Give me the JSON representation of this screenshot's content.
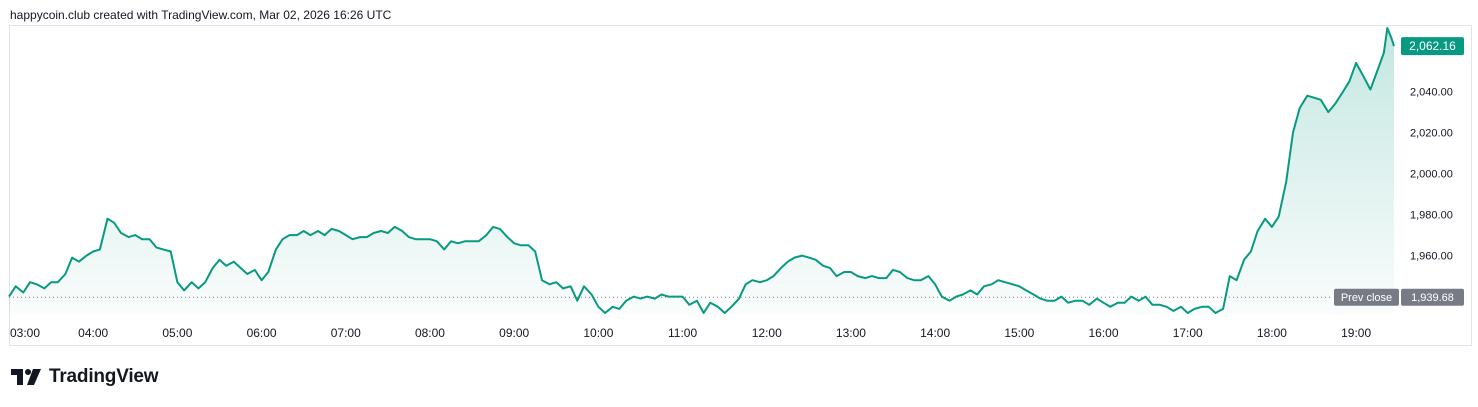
{
  "header": {
    "attribution": "happycoin.club created with TradingView.com, Mar 02, 2026 16:26 UTC"
  },
  "footer": {
    "brand": "TradingView"
  },
  "colors": {
    "line": "#089981",
    "price_badge": "#089981",
    "prev_close_badge": "#787b86",
    "grid": "#e0e3eb"
  },
  "chart_data": {
    "type": "area",
    "last_price_label": "2,062.16",
    "prev_close_label": "Prev close",
    "prev_close_value_label": "1,939.68",
    "last_price": 2062.16,
    "prev_close": 1939.68,
    "y_ticks": [
      {
        "value": 1960,
        "label": "1,960.00"
      },
      {
        "value": 1980,
        "label": "1,980.00"
      },
      {
        "value": 2000,
        "label": "2,000.00"
      },
      {
        "value": 2020,
        "label": "2,020.00"
      },
      {
        "value": 2040,
        "label": "2,040.00"
      }
    ],
    "x_ticks": [
      {
        "hour": 3,
        "label": "03:00"
      },
      {
        "hour": 4,
        "label": "04:00"
      },
      {
        "hour": 5,
        "label": "05:00"
      },
      {
        "hour": 6,
        "label": "06:00"
      },
      {
        "hour": 7,
        "label": "07:00"
      },
      {
        "hour": 8,
        "label": "08:00"
      },
      {
        "hour": 9,
        "label": "09:00"
      },
      {
        "hour": 10,
        "label": "10:00"
      },
      {
        "hour": 11,
        "label": "11:00"
      },
      {
        "hour": 12,
        "label": "12:00"
      },
      {
        "hour": 13,
        "label": "13:00"
      },
      {
        "hour": 14,
        "label": "14:00"
      },
      {
        "hour": 15,
        "label": "15:00"
      },
      {
        "hour": 16,
        "label": "16:00"
      },
      {
        "hour": 17,
        "label": "17:00"
      },
      {
        "hour": 18,
        "label": "18:00"
      },
      {
        "hour": 19,
        "label": "19:00"
      }
    ],
    "ylim": [
      1931,
      2072
    ],
    "xlim": [
      3.0,
      19.45
    ],
    "series": [
      {
        "points": [
          [
            3.0,
            1940
          ],
          [
            3.08,
            1945
          ],
          [
            3.17,
            1942
          ],
          [
            3.25,
            1947
          ],
          [
            3.33,
            1946
          ],
          [
            3.42,
            1944
          ],
          [
            3.5,
            1947
          ],
          [
            3.58,
            1947
          ],
          [
            3.67,
            1951
          ],
          [
            3.75,
            1959
          ],
          [
            3.83,
            1957
          ],
          [
            3.92,
            1960
          ],
          [
            4.0,
            1962
          ],
          [
            4.08,
            1963
          ],
          [
            4.17,
            1978
          ],
          [
            4.25,
            1976
          ],
          [
            4.33,
            1971
          ],
          [
            4.42,
            1969
          ],
          [
            4.5,
            1970
          ],
          [
            4.58,
            1968
          ],
          [
            4.67,
            1968
          ],
          [
            4.75,
            1964
          ],
          [
            4.83,
            1963
          ],
          [
            4.92,
            1962
          ],
          [
            5.0,
            1947
          ],
          [
            5.08,
            1943
          ],
          [
            5.17,
            1947
          ],
          [
            5.25,
            1944
          ],
          [
            5.33,
            1947
          ],
          [
            5.42,
            1954
          ],
          [
            5.5,
            1958
          ],
          [
            5.58,
            1955
          ],
          [
            5.67,
            1957
          ],
          [
            5.75,
            1954
          ],
          [
            5.83,
            1951
          ],
          [
            5.92,
            1953
          ],
          [
            6.0,
            1948
          ],
          [
            6.08,
            1952
          ],
          [
            6.17,
            1963
          ],
          [
            6.25,
            1968
          ],
          [
            6.33,
            1970
          ],
          [
            6.42,
            1970
          ],
          [
            6.5,
            1972
          ],
          [
            6.58,
            1970
          ],
          [
            6.67,
            1972
          ],
          [
            6.75,
            1970
          ],
          [
            6.83,
            1973
          ],
          [
            6.92,
            1972
          ],
          [
            7.0,
            1970
          ],
          [
            7.08,
            1968
          ],
          [
            7.17,
            1969
          ],
          [
            7.25,
            1969
          ],
          [
            7.33,
            1971
          ],
          [
            7.42,
            1972
          ],
          [
            7.5,
            1971
          ],
          [
            7.58,
            1974
          ],
          [
            7.67,
            1972
          ],
          [
            7.75,
            1969
          ],
          [
            7.83,
            1968
          ],
          [
            7.92,
            1968
          ],
          [
            8.0,
            1968
          ],
          [
            8.08,
            1967
          ],
          [
            8.17,
            1963
          ],
          [
            8.25,
            1967
          ],
          [
            8.33,
            1966
          ],
          [
            8.42,
            1967
          ],
          [
            8.5,
            1967
          ],
          [
            8.58,
            1967
          ],
          [
            8.67,
            1970
          ],
          [
            8.75,
            1974
          ],
          [
            8.83,
            1973
          ],
          [
            8.92,
            1969
          ],
          [
            9.0,
            1966
          ],
          [
            9.08,
            1965
          ],
          [
            9.17,
            1965
          ],
          [
            9.25,
            1962
          ],
          [
            9.33,
            1948
          ],
          [
            9.42,
            1946
          ],
          [
            9.5,
            1947
          ],
          [
            9.58,
            1944
          ],
          [
            9.67,
            1945
          ],
          [
            9.75,
            1938
          ],
          [
            9.83,
            1945
          ],
          [
            9.92,
            1941
          ],
          [
            10.0,
            1935
          ],
          [
            10.08,
            1932
          ],
          [
            10.17,
            1935
          ],
          [
            10.25,
            1934
          ],
          [
            10.33,
            1938
          ],
          [
            10.42,
            1940
          ],
          [
            10.5,
            1939
          ],
          [
            10.58,
            1940
          ],
          [
            10.67,
            1939
          ],
          [
            10.75,
            1941
          ],
          [
            10.83,
            1940
          ],
          [
            10.92,
            1940
          ],
          [
            11.0,
            1940
          ],
          [
            11.08,
            1936
          ],
          [
            11.17,
            1938
          ],
          [
            11.25,
            1932
          ],
          [
            11.33,
            1937
          ],
          [
            11.42,
            1935
          ],
          [
            11.5,
            1932
          ],
          [
            11.58,
            1935
          ],
          [
            11.67,
            1939
          ],
          [
            11.75,
            1946
          ],
          [
            11.83,
            1948
          ],
          [
            11.92,
            1947
          ],
          [
            12.0,
            1948
          ],
          [
            12.08,
            1950
          ],
          [
            12.17,
            1954
          ],
          [
            12.25,
            1957
          ],
          [
            12.33,
            1959
          ],
          [
            12.42,
            1960
          ],
          [
            12.5,
            1959
          ],
          [
            12.58,
            1958
          ],
          [
            12.67,
            1955
          ],
          [
            12.75,
            1954
          ],
          [
            12.83,
            1950
          ],
          [
            12.92,
            1952
          ],
          [
            13.0,
            1952
          ],
          [
            13.08,
            1950
          ],
          [
            13.17,
            1949
          ],
          [
            13.25,
            1950
          ],
          [
            13.33,
            1949
          ],
          [
            13.42,
            1949
          ],
          [
            13.5,
            1953
          ],
          [
            13.58,
            1952
          ],
          [
            13.67,
            1949
          ],
          [
            13.75,
            1948
          ],
          [
            13.83,
            1948
          ],
          [
            13.92,
            1950
          ],
          [
            14.0,
            1946
          ],
          [
            14.08,
            1940
          ],
          [
            14.17,
            1938
          ],
          [
            14.25,
            1940
          ],
          [
            14.33,
            1941
          ],
          [
            14.42,
            1943
          ],
          [
            14.5,
            1941
          ],
          [
            14.58,
            1945
          ],
          [
            14.67,
            1946
          ],
          [
            14.75,
            1948
          ],
          [
            14.83,
            1947
          ],
          [
            14.92,
            1946
          ],
          [
            15.0,
            1945
          ],
          [
            15.08,
            1943
          ],
          [
            15.17,
            1941
          ],
          [
            15.25,
            1939
          ],
          [
            15.33,
            1938
          ],
          [
            15.42,
            1938
          ],
          [
            15.5,
            1940
          ],
          [
            15.58,
            1937
          ],
          [
            15.67,
            1938
          ],
          [
            15.75,
            1938
          ],
          [
            15.83,
            1936
          ],
          [
            15.92,
            1939
          ],
          [
            16.0,
            1937
          ],
          [
            16.08,
            1935
          ],
          [
            16.17,
            1937
          ],
          [
            16.25,
            1937
          ],
          [
            16.33,
            1940
          ],
          [
            16.42,
            1938
          ],
          [
            16.5,
            1940
          ],
          [
            16.58,
            1936
          ],
          [
            16.67,
            1936
          ],
          [
            16.75,
            1935
          ],
          [
            16.83,
            1933
          ],
          [
            16.92,
            1935
          ],
          [
            17.0,
            1932
          ],
          [
            17.08,
            1934
          ],
          [
            17.17,
            1935
          ],
          [
            17.25,
            1935
          ],
          [
            17.33,
            1932
          ],
          [
            17.42,
            1934
          ],
          [
            17.5,
            1950
          ],
          [
            17.58,
            1948
          ],
          [
            17.67,
            1958
          ],
          [
            17.75,
            1962
          ],
          [
            17.83,
            1972
          ],
          [
            17.92,
            1978
          ],
          [
            18.0,
            1974
          ],
          [
            18.08,
            1979
          ],
          [
            18.17,
            1996
          ],
          [
            18.25,
            2020
          ],
          [
            18.33,
            2032
          ],
          [
            18.42,
            2038
          ],
          [
            18.5,
            2037
          ],
          [
            18.58,
            2036
          ],
          [
            18.67,
            2030
          ],
          [
            18.75,
            2034
          ],
          [
            18.83,
            2039
          ],
          [
            18.92,
            2045
          ],
          [
            19.0,
            2054
          ],
          [
            19.08,
            2048
          ],
          [
            19.17,
            2041
          ],
          [
            19.25,
            2050
          ],
          [
            19.33,
            2059
          ],
          [
            19.37,
            2071
          ],
          [
            19.42,
            2066
          ],
          [
            19.45,
            2062.16
          ]
        ]
      }
    ]
  }
}
